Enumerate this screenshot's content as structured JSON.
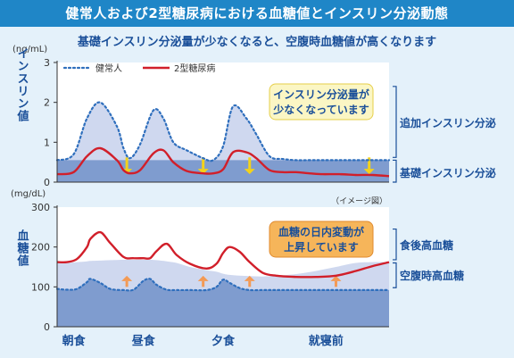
{
  "title": "健常人および2型糖尿病における血糖値とインスリン分泌動態",
  "subtitle": "基礎インスリン分泌量が少なくなると、空腹時血糖値が高くなります",
  "note": "（イメージ図）",
  "colors": {
    "title_bar": "#1f86c7",
    "background": "#e4f1fa",
    "panel_bg": "#ffffff",
    "healthy_line": "#2f6fbd",
    "healthy_fill": "#cfd8ef",
    "diabetes_line": "#d11f2a",
    "basal_band": "#7f9ccf",
    "insulin_arrow": "#f3d21b",
    "glucose_arrow": "#f39a55",
    "callout_fill_insulin": "#fbf6c4",
    "callout_fill_glucose": "#f6b55a"
  },
  "chart_data": [
    {
      "type": "line",
      "unit": "(ng/mL)",
      "ylabel": "インスリン値",
      "ylim": [
        0,
        3
      ],
      "yticks": [
        0,
        1,
        2,
        3
      ],
      "legend": [
        "健常人",
        "2型糖尿病"
      ],
      "legend_position": "top-left",
      "grid": false,
      "x": [
        0,
        0.05,
        0.09,
        0.13,
        0.18,
        0.2,
        0.22,
        0.25,
        0.29,
        0.32,
        0.35,
        0.39,
        0.44,
        0.47,
        0.5,
        0.53,
        0.57,
        0.6,
        0.64,
        0.68,
        0.72,
        0.76,
        0.8,
        0.85,
        0.9,
        0.95,
        1
      ],
      "series": [
        {
          "name": "健常人",
          "style": "dotted",
          "values": [
            0.55,
            0.7,
            1.6,
            2.0,
            1.4,
            0.85,
            0.6,
            0.95,
            1.8,
            1.6,
            1.0,
            0.8,
            0.6,
            0.55,
            0.9,
            1.9,
            1.6,
            1.2,
            0.65,
            0.58,
            0.55,
            0.55,
            0.55,
            0.55,
            0.55,
            0.55,
            0.55
          ]
        },
        {
          "name": "2型糖尿病",
          "style": "solid",
          "values": [
            0.2,
            0.25,
            0.65,
            0.85,
            0.55,
            0.3,
            0.22,
            0.3,
            0.72,
            0.8,
            0.5,
            0.28,
            0.22,
            0.22,
            0.32,
            0.75,
            0.75,
            0.6,
            0.3,
            0.25,
            0.25,
            0.22,
            0.2,
            0.2,
            0.18,
            0.18,
            0.15
          ]
        },
        {
          "name": "基礎インスリン分泌",
          "style": "band",
          "values": [
            0.55,
            0.55,
            0.55,
            0.55,
            0.55,
            0.55,
            0.55,
            0.55,
            0.55,
            0.55,
            0.55,
            0.55,
            0.55,
            0.55,
            0.55,
            0.55,
            0.55,
            0.55,
            0.55,
            0.55,
            0.55,
            0.55,
            0.55,
            0.55,
            0.55,
            0.55,
            0.55
          ]
        }
      ],
      "annotations": {
        "callout": [
          "インスリン分泌量が",
          "少なくなっています"
        ],
        "side_labels": [
          "追加インスリン分泌",
          "基礎インスリン分泌"
        ]
      },
      "arrows_at_x": [
        0.21,
        0.44,
        0.58,
        0.94
      ]
    },
    {
      "type": "line",
      "unit": "(mg/dL)",
      "ylabel": "血糖値",
      "ylim": [
        0,
        300
      ],
      "yticks": [
        0,
        100,
        200,
        300
      ],
      "grid": false,
      "xticks": [
        {
          "label": "朝食",
          "x": 0.05
        },
        {
          "label": "昼食",
          "x": 0.26
        },
        {
          "label": "夕食",
          "x": 0.5
        },
        {
          "label": "就寝前",
          "x": 0.81
        }
      ],
      "x": [
        0,
        0.03,
        0.06,
        0.09,
        0.1,
        0.13,
        0.16,
        0.2,
        0.23,
        0.26,
        0.28,
        0.3,
        0.33,
        0.36,
        0.4,
        0.45,
        0.48,
        0.5,
        0.52,
        0.55,
        0.58,
        0.62,
        0.66,
        0.72,
        0.78,
        0.84,
        0.9,
        0.95,
        1
      ],
      "series": [
        {
          "name": "健常人",
          "style": "dotted",
          "values": [
            95,
            93,
            95,
            112,
            120,
            110,
            95,
            92,
            93,
            115,
            120,
            105,
            93,
            92,
            92,
            92,
            100,
            118,
            110,
            97,
            92,
            92,
            92,
            92,
            92,
            92,
            92,
            92,
            92
          ]
        },
        {
          "name": "2型糖尿病",
          "style": "solid",
          "values": [
            162,
            162,
            170,
            200,
            220,
            237,
            210,
            175,
            172,
            172,
            172,
            190,
            208,
            180,
            158,
            146,
            158,
            185,
            200,
            188,
            162,
            135,
            128,
            125,
            125,
            128,
            140,
            152,
            162
          ]
        },
        {
          "name": "空腹時高血糖",
          "style": "band",
          "values": [
            160,
            160,
            162,
            164,
            165,
            166,
            167,
            168,
            168,
            168,
            168,
            167,
            164,
            160,
            150,
            142,
            138,
            133,
            130,
            128,
            127,
            126,
            128,
            132,
            140,
            150,
            160,
            162,
            162
          ]
        }
      ],
      "annotations": {
        "callout": [
          "血糖の日内変動が",
          "上昇しています"
        ],
        "side_labels": [
          "食後高血糖",
          "空腹時高血糖"
        ]
      },
      "arrows_at_x": [
        0.21,
        0.44,
        0.58,
        0.84
      ]
    }
  ]
}
